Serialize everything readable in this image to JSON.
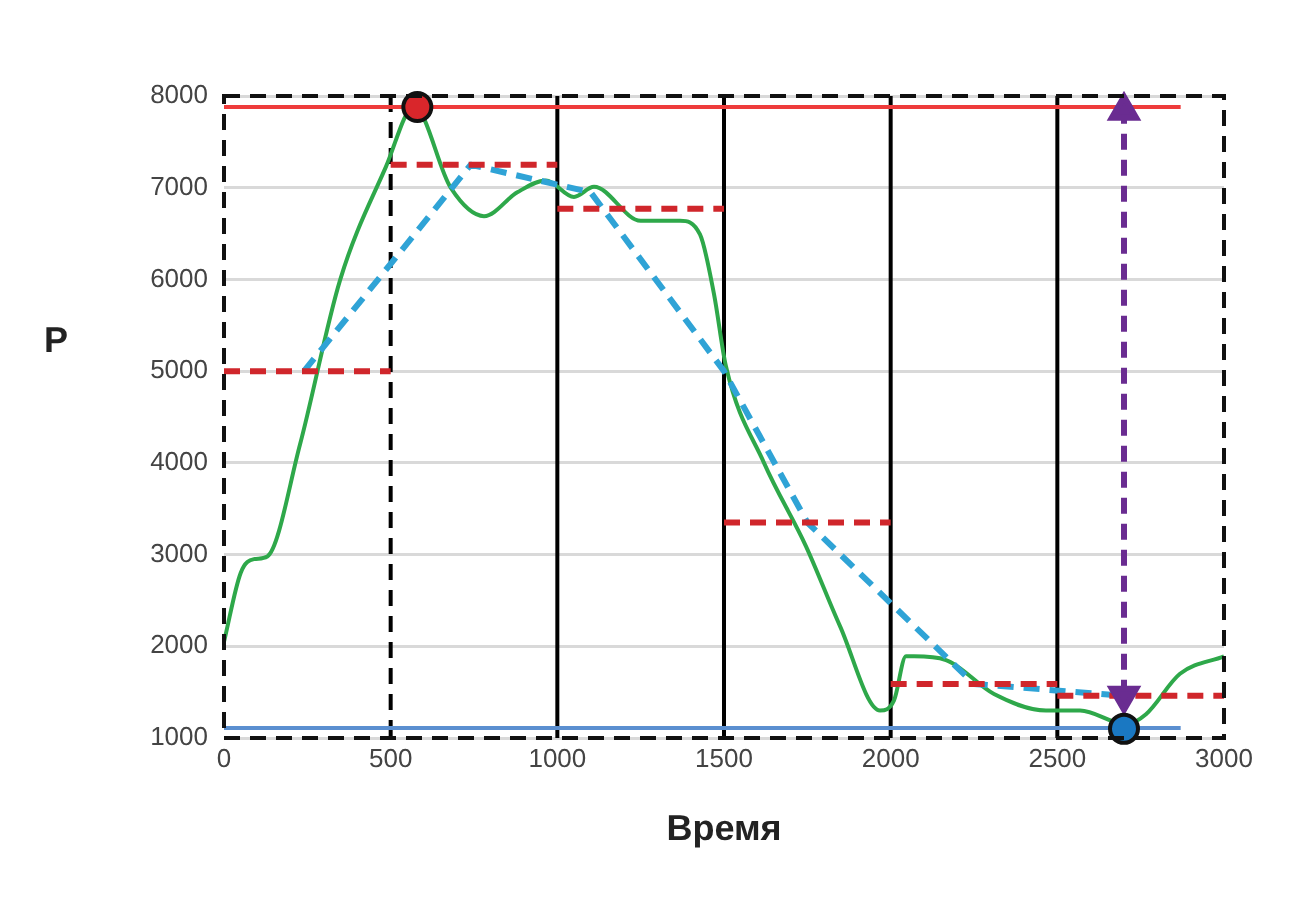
{
  "chart_data": {
    "type": "line",
    "xlabel": "Время",
    "ylabel": "P",
    "xlim": [
      0,
      3000
    ],
    "xticks": [
      0,
      500,
      1000,
      1500,
      2000,
      2500,
      3000
    ],
    "ylim": [
      1000,
      8000
    ],
    "yticks": [
      1000,
      2000,
      3000,
      4000,
      5000,
      6000,
      7000,
      8000
    ],
    "grid": "y",
    "legend": false,
    "marker": "none",
    "ref_lines": [
      {
        "axis": "x",
        "value": 500,
        "color": "#000000",
        "line_style": "dashed"
      },
      {
        "axis": "x",
        "value": 1000,
        "color": "#000000",
        "line_style": "solid"
      },
      {
        "axis": "x",
        "value": 1500,
        "color": "#000000",
        "line_style": "solid"
      },
      {
        "axis": "x",
        "value": 2000,
        "color": "#000000",
        "line_style": "solid"
      },
      {
        "axis": "x",
        "value": 2500,
        "color": "#000000",
        "line_style": "solid"
      }
    ],
    "series": [
      {
        "type": "line",
        "color": "#2ea84a",
        "line_style": "solid",
        "x": [
          0,
          50,
          90,
          130,
          228,
          348,
          486,
          570,
          680,
          780,
          880,
          966,
          1050,
          1110,
          1250,
          1368,
          1428,
          1470,
          1506,
          1620,
          1746,
          1848,
          1968,
          2010,
          2046,
          2070,
          2166,
          2310,
          2466,
          2568,
          2706,
          2766,
          2868,
          3000
        ],
        "values": [
          2050,
          2800,
          2950,
          2980,
          4200,
          5990,
          7230,
          7880,
          7000,
          6690,
          6950,
          7080,
          6900,
          7010,
          6640,
          6640,
          6490,
          5840,
          5050,
          4000,
          3090,
          2220,
          1300,
          1410,
          1890,
          1890,
          1850,
          1480,
          1300,
          1300,
          1150,
          1260,
          1700,
          1890
        ]
      },
      {
        "type": "line",
        "color": "#2fa3d6",
        "line_style": "dashed",
        "x": [
          240,
          740,
          1100,
          1500,
          1750,
          2250,
          2700
        ],
        "values": [
          5000,
          7250,
          6950,
          5000,
          3350,
          1590,
          1460
        ]
      },
      {
        "type": "line",
        "color": "#d0262b",
        "line_style": "dashed",
        "x": [
          0,
          500
        ],
        "values": [
          5000,
          5000
        ]
      },
      {
        "type": "line",
        "color": "#d0262b",
        "line_style": "dashed",
        "x": [
          500,
          1000
        ],
        "values": [
          7250,
          7250
        ]
      },
      {
        "type": "line",
        "color": "#d0262b",
        "line_style": "dashed",
        "x": [
          1000,
          1500
        ],
        "values": [
          6770,
          6770
        ]
      },
      {
        "type": "line",
        "color": "#d0262b",
        "line_style": "dashed",
        "x": [
          1500,
          2000
        ],
        "values": [
          3350,
          3350
        ]
      },
      {
        "type": "line",
        "color": "#d0262b",
        "line_style": "dashed",
        "x": [
          2000,
          2500
        ],
        "values": [
          1590,
          1590
        ]
      },
      {
        "type": "line",
        "color": "#d0262b",
        "line_style": "dashed",
        "x": [
          2500,
          3000
        ],
        "values": [
          1460,
          1460
        ]
      },
      {
        "type": "line",
        "color": "#ee3b3b",
        "line_style": "solid",
        "x": [
          0,
          2870
        ],
        "values": [
          7880,
          7880
        ]
      },
      {
        "type": "line",
        "color": "#5b8fd0",
        "line_style": "solid",
        "x": [
          0,
          2870
        ],
        "values": [
          1110,
          1110
        ]
      },
      {
        "type": "line",
        "color": "#6a2c91",
        "line_style": "dashed",
        "marker": "triangle",
        "x": [
          2700,
          2700
        ],
        "values": [
          1460,
          7840
        ]
      },
      {
        "type": "scatter",
        "marker": "circle",
        "colors": [
          "#d9262b",
          "#1a78c2"
        ],
        "x": [
          580,
          2700
        ],
        "values": [
          7880,
          1100
        ]
      }
    ]
  }
}
